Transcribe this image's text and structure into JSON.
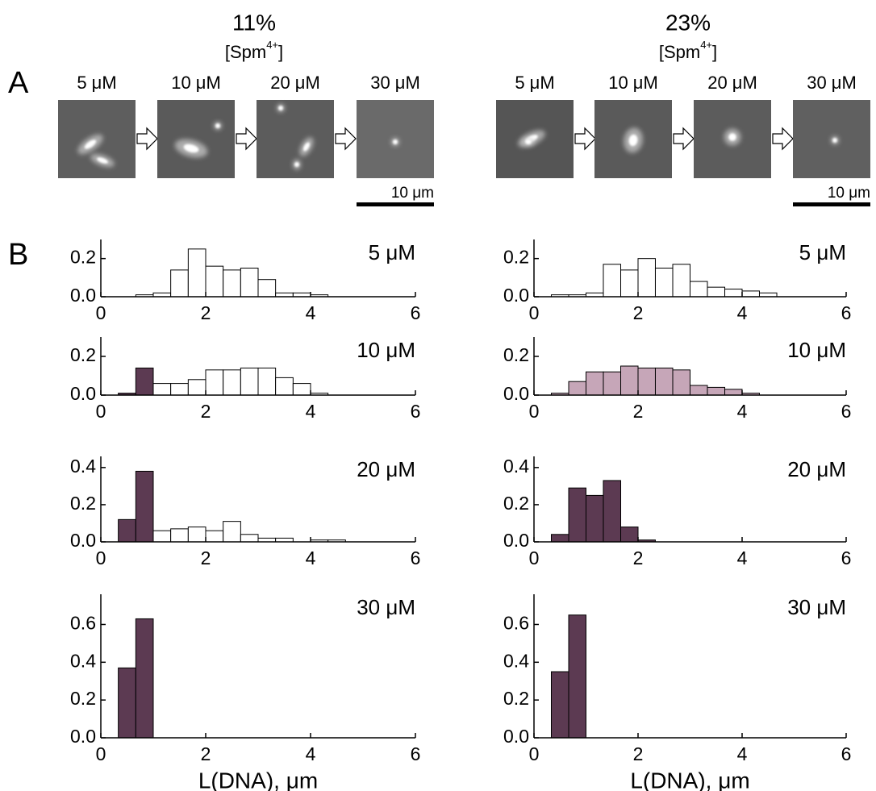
{
  "figure": {
    "panel_labels": [
      "A",
      "B"
    ],
    "panel_a": [
      {
        "percent": "11%",
        "spm": "[Spm",
        "sup": "4+",
        "close": "]",
        "concentrations": [
          "5 μM",
          "10 μM",
          "20 μM",
          "30 μM"
        ],
        "scale_bar": "10 μm"
      },
      {
        "percent": "23%",
        "spm": "[Spm",
        "sup": "4+",
        "close": "]",
        "concentrations": [
          "5 μM",
          "10 μM",
          "20 μM",
          "30 μM"
        ],
        "scale_bar": "10 μm"
      }
    ]
  },
  "chart_data": [
    {
      "type": "histogram",
      "title": "5 μM",
      "bins": [
        0.333,
        0.667,
        1,
        1.333,
        1.667,
        2,
        2.333,
        2.667,
        3,
        3.333,
        3.667,
        4,
        4.333,
        4.667
      ],
      "series": [
        {
          "color": "#ffffff",
          "values": [
            0,
            0.01,
            0.02,
            0.14,
            0.25,
            0.16,
            0.14,
            0.15,
            0.09,
            0.02,
            0.02,
            0.01,
            0
          ]
        }
      ],
      "xlim": [
        0,
        6
      ],
      "xticks": [
        0,
        2,
        4,
        6
      ],
      "ylim": [
        0,
        0.3
      ],
      "yticks": [
        {
          "value": 0,
          "label": "0.0"
        },
        {
          "value": 0.2,
          "label": "0.2"
        }
      ]
    },
    {
      "type": "histogram",
      "title": "10 μM",
      "bins": [
        0.333,
        0.667,
        1,
        1.333,
        1.667,
        2,
        2.333,
        2.667,
        3,
        3.333,
        3.667,
        4,
        4.333,
        4.667
      ],
      "series": [
        {
          "color": "#5c3a52",
          "values": [
            0.01,
            0.14,
            null,
            null,
            null,
            null,
            null,
            null,
            null,
            null,
            null,
            null,
            null
          ]
        },
        {
          "color": "#ffffff",
          "values": [
            null,
            null,
            0.06,
            0.06,
            0.08,
            0.13,
            0.13,
            0.14,
            0.14,
            0.09,
            0.06,
            0.01,
            0
          ]
        }
      ],
      "xlim": [
        0,
        6
      ],
      "xticks": [
        0,
        2,
        4,
        6
      ],
      "ylim": [
        0,
        0.3
      ],
      "yticks": [
        {
          "value": 0,
          "label": "0.0"
        },
        {
          "value": 0.2,
          "label": "0.2"
        }
      ]
    },
    {
      "type": "histogram",
      "title": "20 μM",
      "bins": [
        0.333,
        0.667,
        1,
        1.333,
        1.667,
        2,
        2.333,
        2.667,
        3,
        3.333,
        3.667,
        4,
        4.333,
        4.667
      ],
      "series": [
        {
          "color": "#5c3a52",
          "values": [
            0.12,
            0.38,
            null,
            null,
            null,
            null,
            null,
            null,
            null,
            null,
            null,
            null,
            null
          ]
        },
        {
          "color": "#ffffff",
          "values": [
            null,
            null,
            0.06,
            0.07,
            0.08,
            0.06,
            0.11,
            0.04,
            0.02,
            0.02,
            0,
            0.01,
            0.01
          ]
        }
      ],
      "xlim": [
        0,
        6
      ],
      "xticks": [
        0,
        2,
        4,
        6
      ],
      "ylim": [
        0,
        0.46
      ],
      "yticks": [
        {
          "value": 0,
          "label": "0.0"
        },
        {
          "value": 0.2,
          "label": "0.2"
        },
        {
          "value": 0.4,
          "label": "0.4"
        }
      ]
    },
    {
      "type": "histogram",
      "title": "30 μM",
      "xlabel": "L(DNA), μm",
      "bins": [
        0.333,
        0.667,
        1
      ],
      "series": [
        {
          "color": "#5c3a52",
          "values": [
            0.37,
            0.63
          ]
        }
      ],
      "xlim": [
        0,
        6
      ],
      "xticks": [
        0,
        2,
        4,
        6
      ],
      "ylim": [
        0,
        0.76
      ],
      "yticks": [
        {
          "value": 0,
          "label": "0.0"
        },
        {
          "value": 0.2,
          "label": "0.2"
        },
        {
          "value": 0.4,
          "label": "0.4"
        },
        {
          "value": 0.6,
          "label": "0.6"
        }
      ]
    },
    {
      "type": "histogram",
      "title": "5 μM",
      "bins": [
        0.333,
        0.667,
        1,
        1.333,
        1.667,
        2,
        2.333,
        2.667,
        3,
        3.333,
        3.667,
        4,
        4.333,
        4.667
      ],
      "series": [
        {
          "color": "#ffffff",
          "values": [
            0.01,
            0.01,
            0.02,
            0.17,
            0.14,
            0.2,
            0.15,
            0.17,
            0.08,
            0.05,
            0.04,
            0.03,
            0.02
          ]
        }
      ],
      "xlim": [
        0,
        6
      ],
      "xticks": [
        0,
        2,
        4,
        6
      ],
      "ylim": [
        0,
        0.3
      ],
      "yticks": [
        {
          "value": 0,
          "label": "0.0"
        },
        {
          "value": 0.2,
          "label": "0.2"
        }
      ]
    },
    {
      "type": "histogram",
      "title": "10 μM",
      "bins": [
        0.333,
        0.667,
        1,
        1.333,
        1.667,
        2,
        2.333,
        2.667,
        3,
        3.333,
        3.667,
        4,
        4.333,
        4.667
      ],
      "series": [
        {
          "color": "#c6a6b8",
          "values": [
            0.01,
            0.07,
            0.12,
            0.12,
            0.15,
            0.14,
            0.14,
            0.13,
            0.05,
            0.04,
            0.03,
            0.01,
            0
          ]
        }
      ],
      "xlim": [
        0,
        6
      ],
      "xticks": [
        0,
        2,
        4,
        6
      ],
      "ylim": [
        0,
        0.3
      ],
      "yticks": [
        {
          "value": 0,
          "label": "0.0"
        },
        {
          "value": 0.2,
          "label": "0.2"
        }
      ]
    },
    {
      "type": "histogram",
      "title": "20 μM",
      "bins": [
        0.333,
        0.667,
        1,
        1.333,
        1.667,
        2,
        2.333
      ],
      "series": [
        {
          "color": "#5c3a52",
          "values": [
            0.04,
            0.29,
            0.25,
            0.33,
            0.08,
            0.01
          ]
        }
      ],
      "xlim": [
        0,
        6
      ],
      "xticks": [
        0,
        2,
        4,
        6
      ],
      "ylim": [
        0,
        0.46
      ],
      "yticks": [
        {
          "value": 0,
          "label": "0.0"
        },
        {
          "value": 0.2,
          "label": "0.2"
        },
        {
          "value": 0.4,
          "label": "0.4"
        }
      ]
    },
    {
      "type": "histogram",
      "title": "30 μM",
      "xlabel": "L(DNA), μm",
      "bins": [
        0.333,
        0.667,
        1
      ],
      "series": [
        {
          "color": "#5c3a52",
          "values": [
            0.35,
            0.65
          ]
        }
      ],
      "xlim": [
        0,
        6
      ],
      "xticks": [
        0,
        2,
        4,
        6
      ],
      "ylim": [
        0,
        0.76
      ],
      "yticks": [
        {
          "value": 0,
          "label": "0.0"
        },
        {
          "value": 0.2,
          "label": "0.2"
        },
        {
          "value": 0.4,
          "label": "0.4"
        },
        {
          "value": 0.6,
          "label": "0.6"
        }
      ]
    }
  ]
}
